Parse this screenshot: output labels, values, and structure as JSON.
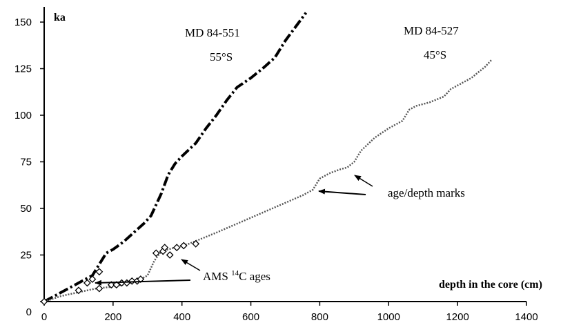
{
  "chart_data": {
    "type": "line",
    "ylabel": "ka",
    "xlabel": "depth in the core (cm)",
    "xlim": [
      0,
      1400
    ],
    "ylim": [
      0,
      150
    ],
    "x_ticks": [
      "0",
      "200",
      "400",
      "600",
      "800",
      "1000",
      "1200",
      "1400"
    ],
    "y_ticks": [
      "0",
      "25",
      "50",
      "75",
      "100",
      "125",
      "150"
    ],
    "series": [
      {
        "name": "MD 84-551",
        "label_lines": [
          "MD 84-551",
          "55°S"
        ],
        "style": "dash-dot",
        "color": "#000000",
        "x": [
          0,
          50,
          100,
          140,
          160,
          180,
          200,
          230,
          260,
          290,
          310,
          320,
          340,
          360,
          380,
          400,
          440,
          470,
          500,
          530,
          560,
          600,
          640,
          670,
          700,
          740,
          760
        ],
        "y": [
          0,
          5,
          10,
          14,
          20,
          26,
          28,
          32,
          37,
          42,
          46,
          50,
          58,
          68,
          74,
          78,
          85,
          93,
          100,
          108,
          115,
          120,
          126,
          131,
          140,
          150,
          155
        ]
      },
      {
        "name": "MD 84-527",
        "label_lines": [
          "MD 84-527",
          "45°S"
        ],
        "style": "dotted",
        "color": "#555555",
        "x": [
          0,
          50,
          100,
          150,
          200,
          250,
          280,
          300,
          320,
          340,
          380,
          420,
          460,
          500,
          550,
          600,
          650,
          700,
          750,
          780,
          800,
          830,
          860,
          880,
          900,
          920,
          960,
          1000,
          1040,
          1060,
          1080,
          1120,
          1160,
          1180,
          1200,
          1240,
          1280,
          1300
        ],
        "y": [
          0,
          3,
          5,
          7,
          8,
          10,
          12,
          14,
          22,
          27,
          29,
          31,
          34,
          37,
          41,
          45,
          49,
          53,
          57,
          60,
          66,
          69,
          71,
          72,
          75,
          81,
          88,
          93,
          97,
          103,
          105,
          107,
          110,
          114,
          116,
          120,
          126,
          130
        ]
      }
    ],
    "ams_markers": {
      "label": "AMS ",
      "label_sup": "14",
      "label_tail": "C ages",
      "x": [
        0,
        100,
        125,
        140,
        160,
        160,
        195,
        210,
        225,
        240,
        255,
        270,
        280,
        325,
        345,
        350,
        365,
        385,
        405,
        440
      ],
      "y": [
        0,
        6,
        10,
        12,
        7,
        16,
        9,
        9,
        10,
        10,
        11,
        11,
        12,
        26,
        27,
        29,
        25,
        29,
        30,
        31
      ]
    },
    "annotations": [
      {
        "text": "age/depth marks"
      }
    ]
  }
}
